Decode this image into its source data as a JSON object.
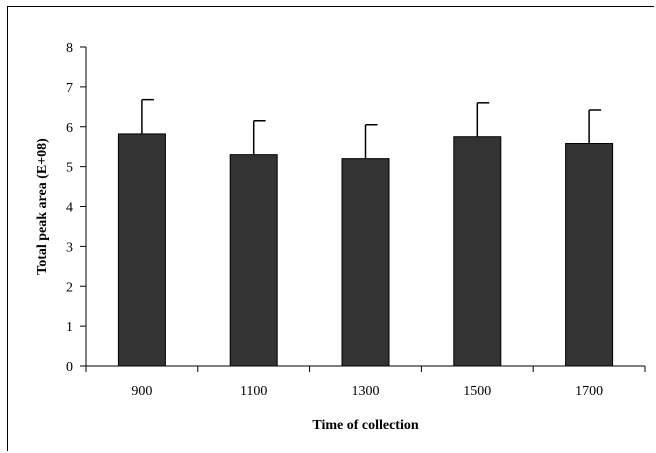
{
  "chart_data": {
    "type": "bar",
    "categories": [
      "900",
      "1100",
      "1300",
      "1500",
      "1700"
    ],
    "values": [
      5.82,
      5.3,
      5.2,
      5.75,
      5.58
    ],
    "error_bars_upper": [
      6.68,
      6.15,
      6.05,
      6.6,
      6.42
    ],
    "xlabel": "Time of collection",
    "ylabel": "Total peak area (E+08)",
    "ylim": [
      0,
      8
    ],
    "yticks": [
      "0",
      "1",
      "2",
      "3",
      "4",
      "5",
      "6",
      "7",
      "8"
    ],
    "grid": false,
    "bar_color": "#333333"
  }
}
